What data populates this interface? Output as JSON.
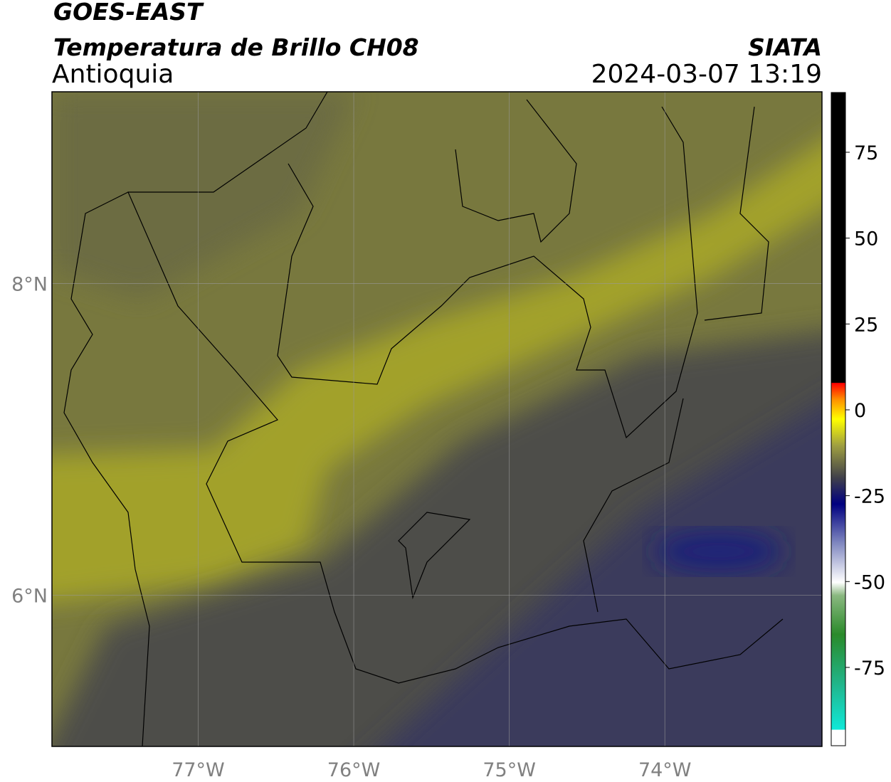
{
  "header": {
    "satellite": "GOES-EAST",
    "product": "Temperatura de Brillo CH08",
    "region": "Antioquia",
    "agency": "SIATA",
    "datetime": "2024-03-07 13:19"
  },
  "map": {
    "xlim": [
      -77.94,
      -72.99
    ],
    "ylim": [
      5.03,
      9.23
    ],
    "xticks": [
      {
        "value": -77,
        "label": "77°W"
      },
      {
        "value": -76,
        "label": "76°W"
      },
      {
        "value": -75,
        "label": "75°W"
      },
      {
        "value": -74,
        "label": "74°W"
      }
    ],
    "yticks": [
      {
        "value": 6,
        "label": "6°N"
      },
      {
        "value": 8,
        "label": "8°N"
      }
    ],
    "grid": true
  },
  "colorbar": {
    "clim": [
      -97.8,
      92.4
    ],
    "ticks": [
      -75,
      -50,
      -25,
      0,
      25,
      50,
      75
    ]
  }
}
